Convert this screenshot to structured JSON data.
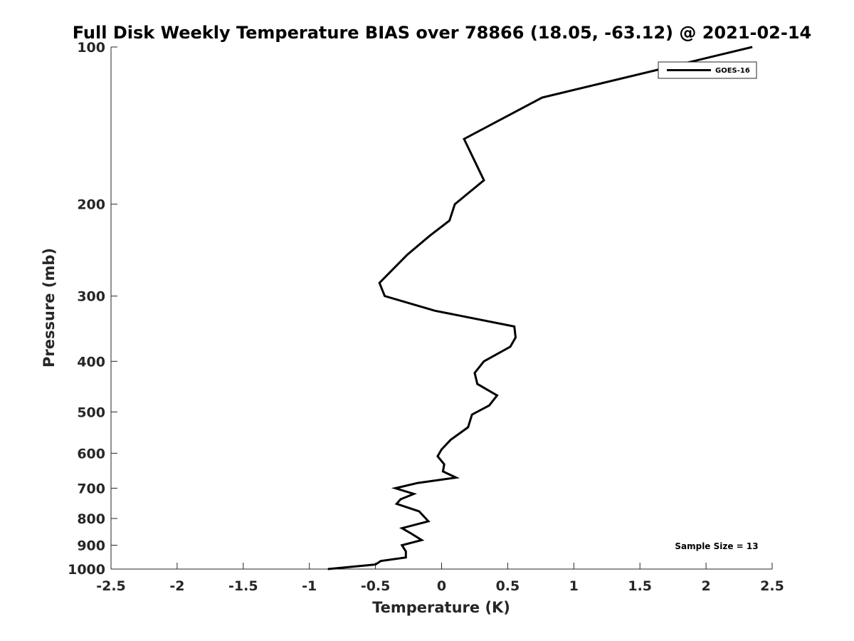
{
  "chart_data": {
    "type": "line",
    "title": "Full Disk Weekly Temperature BIAS over 78866 (18.05, -63.12) @ 2021-02-14",
    "xlabel": "Temperature (K)",
    "ylabel": "Pressure (mb)",
    "xlim": [
      -2.5,
      2.5
    ],
    "ylim": [
      100,
      1000
    ],
    "yscale": "log",
    "y_reversed": true,
    "grid": false,
    "legend_position": "top-right",
    "x_ticks": [
      -2.5,
      -2,
      -1.5,
      -1,
      -0.5,
      0,
      0.5,
      1,
      1.5,
      2,
      2.5
    ],
    "x_tick_labels": [
      "-2.5",
      "-2",
      "-1.5",
      "-1",
      "-0.5",
      "0",
      "0.5",
      "1",
      "1.5",
      "2",
      "2.5"
    ],
    "y_ticks": [
      100,
      200,
      300,
      400,
      500,
      600,
      700,
      800,
      900,
      1000
    ],
    "y_tick_labels": [
      "100",
      "200",
      "300",
      "400",
      "500",
      "600",
      "700",
      "800",
      "900",
      "1000"
    ],
    "series": [
      {
        "name": "GOES-16",
        "color": "#000000",
        "points": [
          [
            2.35,
            100
          ],
          [
            0.76,
            125
          ],
          [
            0.17,
            150
          ],
          [
            0.32,
            180
          ],
          [
            0.1,
            200
          ],
          [
            0.06,
            215
          ],
          [
            -0.09,
            230
          ],
          [
            -0.26,
            250
          ],
          [
            -0.47,
            283
          ],
          [
            -0.43,
            300
          ],
          [
            -0.05,
            320
          ],
          [
            0.55,
            343
          ],
          [
            0.56,
            360
          ],
          [
            0.52,
            375
          ],
          [
            0.32,
            400
          ],
          [
            0.25,
            421
          ],
          [
            0.27,
            442
          ],
          [
            0.42,
            465
          ],
          [
            0.36,
            486
          ],
          [
            0.23,
            506
          ],
          [
            0.2,
            535
          ],
          [
            0.07,
            565
          ],
          [
            0.0,
            590
          ],
          [
            -0.03,
            608
          ],
          [
            0.02,
            630
          ],
          [
            0.01,
            650
          ],
          [
            0.11,
            668
          ],
          [
            -0.18,
            684
          ],
          [
            -0.35,
            700
          ],
          [
            -0.21,
            718
          ],
          [
            -0.31,
            735
          ],
          [
            -0.34,
            750
          ],
          [
            -0.17,
            775
          ],
          [
            -0.1,
            810
          ],
          [
            -0.3,
            835
          ],
          [
            -0.23,
            855
          ],
          [
            -0.15,
            880
          ],
          [
            -0.3,
            900
          ],
          [
            -0.27,
            925
          ],
          [
            -0.27,
            950
          ],
          [
            -0.46,
            965
          ],
          [
            -0.5,
            980
          ],
          [
            -0.86,
            1000
          ]
        ]
      }
    ],
    "annotation": "Sample Size = 13"
  }
}
